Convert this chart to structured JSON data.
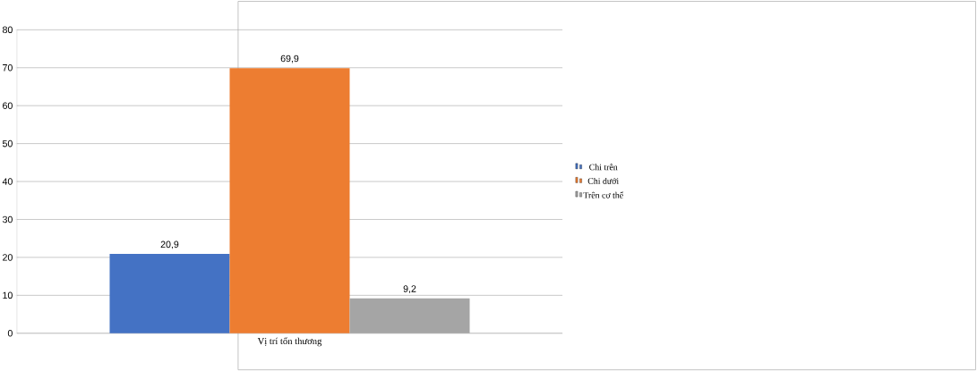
{
  "chart_data": {
    "type": "bar",
    "categories": [
      "Vị trí tổn thương"
    ],
    "series": [
      {
        "name": "Chi trên",
        "color": "#4472c4",
        "values": [
          20.9
        ],
        "value_labels": [
          "20,9"
        ]
      },
      {
        "name": "Chi dưới",
        "color": "#ed7d31",
        "values": [
          69.9
        ],
        "value_labels": [
          "69,9"
        ]
      },
      {
        "name": "Trên cơ thể",
        "color": "#a5a5a5",
        "values": [
          9.2
        ],
        "value_labels": [
          "9,2"
        ]
      }
    ],
    "ylim": [
      0,
      80
    ],
    "yticks": [
      0,
      10,
      20,
      30,
      40,
      50,
      60,
      70,
      80
    ],
    "grid": "y",
    "legend": "right"
  }
}
